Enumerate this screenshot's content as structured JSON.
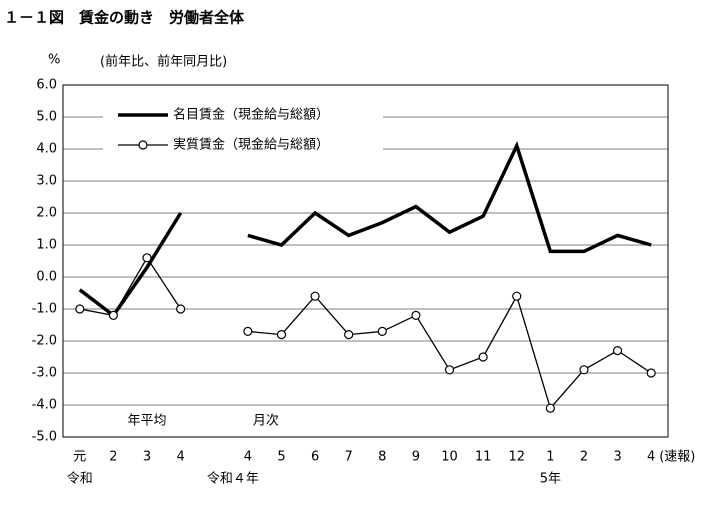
{
  "chart_data": {
    "type": "line",
    "title": "１－１図　賃金の動き　労働者全体",
    "y_unit": "%",
    "subtitle": "(前年比、前年同月比)",
    "categories": [
      "元",
      "2",
      "3",
      "4",
      null,
      "4",
      "5",
      "6",
      "7",
      "8",
      "9",
      "10",
      "11",
      "12",
      "1",
      "2",
      "3",
      "4"
    ],
    "x_note": "(速報)",
    "era_labels": [
      "令和",
      "令和４年",
      "5年"
    ],
    "period_labels": [
      "年平均",
      "月次"
    ],
    "series": [
      {
        "name": "名目賃金（現金給与総額）",
        "color": "#000000",
        "marker": "none",
        "values": [
          -0.4,
          -1.2,
          0.3,
          2.0,
          null,
          1.3,
          1.0,
          2.0,
          1.3,
          1.7,
          2.2,
          1.4,
          1.9,
          4.1,
          0.8,
          0.8,
          1.3,
          1.0
        ]
      },
      {
        "name": "実質賃金（現金給与総額）",
        "color": "#000000",
        "marker": "circle",
        "values": [
          -1.0,
          -1.2,
          0.6,
          -1.0,
          null,
          -1.7,
          -1.8,
          -0.6,
          -1.8,
          -1.7,
          -1.2,
          -2.9,
          -2.5,
          -0.6,
          -4.1,
          -2.9,
          -2.3,
          -3.0
        ]
      }
    ],
    "ylim": [
      -5,
      6
    ],
    "yticks": [
      {
        "value": -5,
        "label": "-5.0"
      },
      {
        "value": -4,
        "label": "-4.0"
      },
      {
        "value": -3,
        "label": "-3.0"
      },
      {
        "value": -2,
        "label": "-2.0"
      },
      {
        "value": -1,
        "label": "-1.0"
      },
      {
        "value": 0,
        "label": "0.0"
      },
      {
        "value": 1,
        "label": "1.0"
      },
      {
        "value": 2,
        "label": "2.0"
      },
      {
        "value": 3,
        "label": "3.0"
      },
      {
        "value": 4,
        "label": "4.0"
      },
      {
        "value": 5,
        "label": "5.0"
      },
      {
        "value": 6,
        "label": "6.0"
      }
    ],
    "grid": true
  }
}
